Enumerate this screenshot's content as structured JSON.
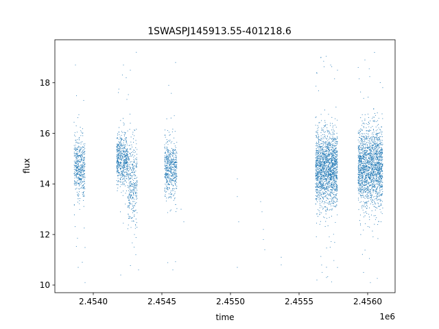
{
  "chart_data": {
    "type": "scatter",
    "title": "1SWASPJ145913.55-401218.6",
    "xlabel": "time",
    "ylabel": "flux",
    "x_offset_label": "1e6",
    "xlim": [
      2.45372,
      2.4562
    ],
    "ylim": [
      9.7,
      19.7
    ],
    "x_ticks": [
      2.454,
      2.4545,
      2.455,
      2.4555,
      2.456
    ],
    "x_tick_labels": [
      "2.4540",
      "2.4545",
      "2.4550",
      "2.4555",
      "2.4560"
    ],
    "y_ticks": [
      10,
      12,
      14,
      16,
      18
    ],
    "y_tick_labels": [
      "10",
      "12",
      "14",
      "16",
      "18"
    ],
    "grid": false,
    "marker_color": "#1f77b4",
    "marker": "small dots",
    "series": [
      {
        "clusters": [
          {
            "x_range": [
              2.45386,
              2.45394
            ],
            "y_center": 14.7,
            "y_spread": 0.55,
            "density": "dense",
            "n": 500
          },
          {
            "x_range": [
              2.45417,
              2.45425
            ],
            "y_center": 15.0,
            "y_spread": 0.5,
            "density": "dense",
            "n": 550
          },
          {
            "x_range": [
              2.45425,
              2.45432
            ],
            "y_center": 14.0,
            "y_spread": 0.9,
            "density": "dense",
            "n": 350
          },
          {
            "x_range": [
              2.45452,
              2.45461
            ],
            "y_center": 14.6,
            "y_spread": 0.55,
            "density": "dense",
            "n": 550
          },
          {
            "x_range": [
              2.45562,
              2.45578
            ],
            "y_center": 14.6,
            "y_spread": 0.75,
            "density": "very dense",
            "n": 1800
          },
          {
            "x_range": [
              2.45593,
              2.45611
            ],
            "y_center": 14.7,
            "y_spread": 0.75,
            "density": "very dense",
            "n": 1900
          }
        ],
        "sparse_points": [
          [
            2.45387,
            18.7
          ],
          [
            2.45393,
            17.3
          ],
          [
            2.45392,
            10.9
          ],
          [
            2.45389,
            10.7
          ],
          [
            2.45394,
            10.1
          ],
          [
            2.45422,
            18.7
          ],
          [
            2.45427,
            18.5
          ],
          [
            2.45424,
            18.2
          ],
          [
            2.4543,
            12.0
          ],
          [
            2.45431,
            11.2
          ],
          [
            2.4542,
            10.4
          ],
          [
            2.45433,
            10.6
          ],
          [
            2.4546,
            18.8
          ],
          [
            2.45455,
            17.9
          ],
          [
            2.45458,
            10.6
          ],
          [
            2.45464,
            13.0
          ],
          [
            2.45466,
            12.5
          ],
          [
            2.45505,
            14.2
          ],
          [
            2.45505,
            13.5
          ],
          [
            2.45506,
            12.5
          ],
          [
            2.45505,
            10.7
          ],
          [
            2.45522,
            13.3
          ],
          [
            2.45523,
            12.9
          ],
          [
            2.45524,
            12.2
          ],
          [
            2.45524,
            11.8
          ],
          [
            2.45525,
            11.4
          ],
          [
            2.45537,
            11.1
          ],
          [
            2.45537,
            10.8
          ],
          [
            2.45563,
            10.2
          ],
          [
            2.4557,
            10.3
          ],
          [
            2.45566,
            19.0
          ],
          [
            2.45573,
            18.7
          ],
          [
            2.45578,
            18.5
          ],
          [
            2.45598,
            18.9
          ],
          [
            2.45605,
            19.2
          ],
          [
            2.45602,
            10.1
          ],
          [
            2.45597,
            10.5
          ]
        ]
      }
    ]
  }
}
